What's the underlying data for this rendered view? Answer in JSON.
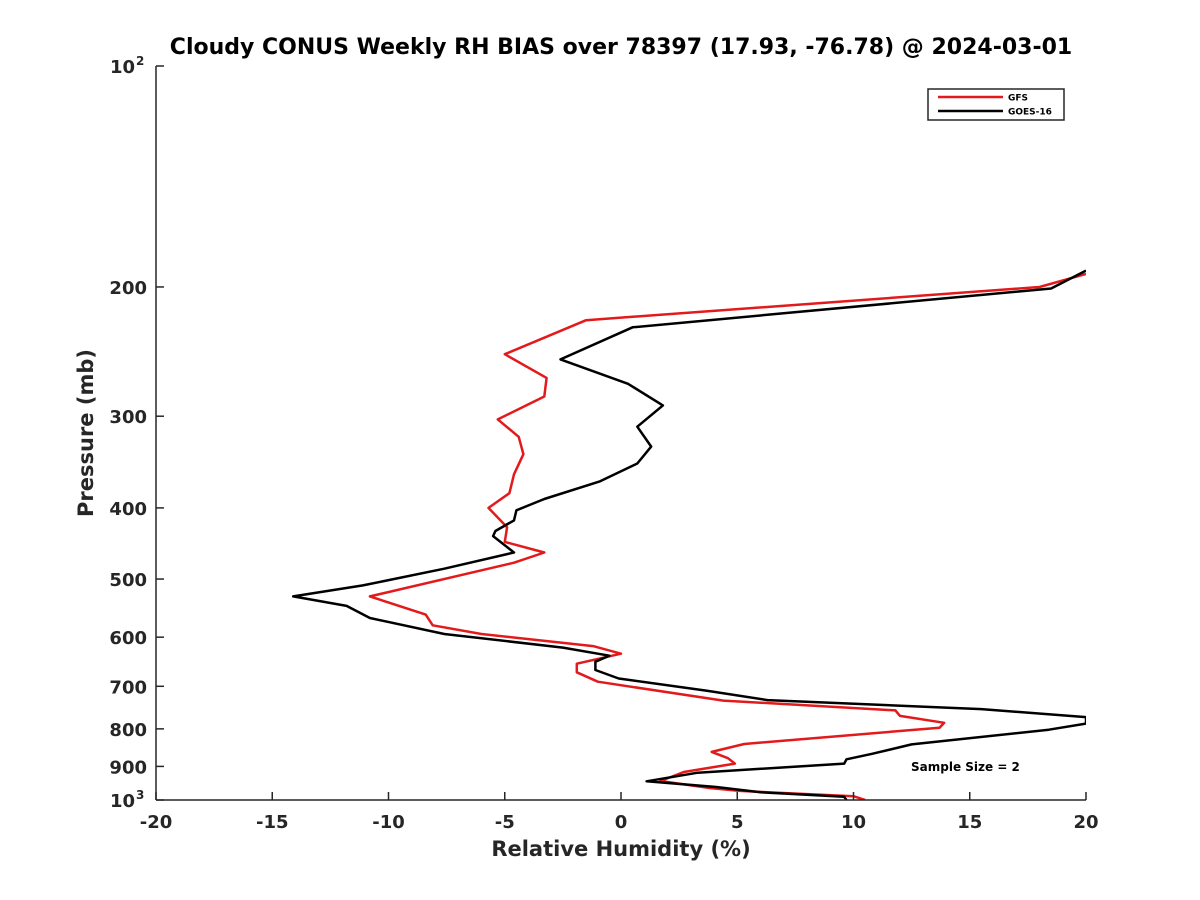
{
  "chart_data": {
    "type": "line",
    "title": "Cloudy CONUS Weekly RH BIAS over 78397 (17.93, -76.78) @ 2024-03-01",
    "xlabel": "Relative Humidity (%)",
    "ylabel": "Pressure (mb)",
    "xlim": [
      -20,
      20
    ],
    "ylim": [
      100,
      1000
    ],
    "y_scale": "log",
    "y_reversed": true,
    "x_ticks": [
      "-20",
      "-15",
      "-10",
      "-5",
      "0",
      "5",
      "10",
      "15",
      "20"
    ],
    "y_ticks": [
      {
        "value": 100,
        "base": "10",
        "exp": "2"
      },
      {
        "value": 200,
        "label": "200"
      },
      {
        "value": 300,
        "label": "300"
      },
      {
        "value": 400,
        "label": "400"
      },
      {
        "value": 500,
        "label": "500"
      },
      {
        "value": 600,
        "label": "600"
      },
      {
        "value": 700,
        "label": "700"
      },
      {
        "value": 800,
        "label": "800"
      },
      {
        "value": 900,
        "label": "900"
      },
      {
        "value": 1000,
        "base": "10",
        "exp": "3"
      }
    ],
    "grid": false,
    "legend_position": "top-right",
    "annotation": "Sample Size = 2",
    "series": [
      {
        "name": "GFS",
        "color": "#e31a1c",
        "points": [
          [
            20,
            192
          ],
          [
            18,
            200
          ],
          [
            -1.5,
            222
          ],
          [
            -5,
            247
          ],
          [
            -3.2,
            266
          ],
          [
            -3.3,
            282
          ],
          [
            -5.3,
            303
          ],
          [
            -4.4,
            320
          ],
          [
            -4.2,
            338
          ],
          [
            -4.6,
            360
          ],
          [
            -4.8,
            382
          ],
          [
            -5.7,
            400
          ],
          [
            -4.9,
            425
          ],
          [
            -5.0,
            445
          ],
          [
            -3.3,
            460
          ],
          [
            -4.6,
            475
          ],
          [
            -10.8,
            528
          ],
          [
            -8.4,
            559
          ],
          [
            -8.1,
            578
          ],
          [
            -6.0,
            594
          ],
          [
            -1.2,
            617
          ],
          [
            0,
            632
          ],
          [
            -1.9,
            652
          ],
          [
            -1.9,
            670
          ],
          [
            -1.0,
            690
          ],
          [
            4.4,
            732
          ],
          [
            11.8,
            755
          ],
          [
            12.0,
            768
          ],
          [
            13.9,
            785
          ],
          [
            13.7,
            797
          ],
          [
            5.3,
            839
          ],
          [
            3.9,
            860
          ],
          [
            4.6,
            877
          ],
          [
            4.9,
            892
          ],
          [
            2.7,
            916
          ],
          [
            1.7,
            942
          ],
          [
            3.8,
            963
          ],
          [
            5.1,
            972
          ],
          [
            10.0,
            988
          ],
          [
            10.5,
            1000
          ]
        ]
      },
      {
        "name": "GOES-16",
        "color": "#000000",
        "points": [
          [
            20,
            190
          ],
          [
            18.5,
            201
          ],
          [
            0.5,
            227
          ],
          [
            -2.6,
            251
          ],
          [
            0.3,
            271
          ],
          [
            1.8,
            290
          ],
          [
            0.7,
            310
          ],
          [
            1.3,
            330
          ],
          [
            0.7,
            348
          ],
          [
            -0.9,
            368
          ],
          [
            -3.3,
            389
          ],
          [
            -4.5,
            403
          ],
          [
            -4.6,
            416
          ],
          [
            -5.4,
            430
          ],
          [
            -5.5,
            437
          ],
          [
            -4.6,
            460
          ],
          [
            -7.6,
            484
          ],
          [
            -11.1,
            510
          ],
          [
            -14.1,
            528
          ],
          [
            -11.8,
            544
          ],
          [
            -10.8,
            565
          ],
          [
            -7.6,
            594
          ],
          [
            -2.5,
            620
          ],
          [
            -0.5,
            636
          ],
          [
            -1.1,
            648
          ],
          [
            -1.1,
            665
          ],
          [
            -0.1,
            683
          ],
          [
            3.7,
            710
          ],
          [
            6.3,
            731
          ],
          [
            15.5,
            752
          ],
          [
            20,
            771
          ],
          [
            20,
            787
          ],
          [
            18.4,
            802
          ],
          [
            12.5,
            840
          ],
          [
            10.8,
            865
          ],
          [
            9.7,
            880
          ],
          [
            9.6,
            892
          ],
          [
            3.3,
            918
          ],
          [
            1.1,
            943
          ],
          [
            4.1,
            960
          ],
          [
            6.0,
            976
          ],
          [
            9.6,
            990
          ],
          [
            9.7,
            1000
          ]
        ]
      }
    ]
  }
}
